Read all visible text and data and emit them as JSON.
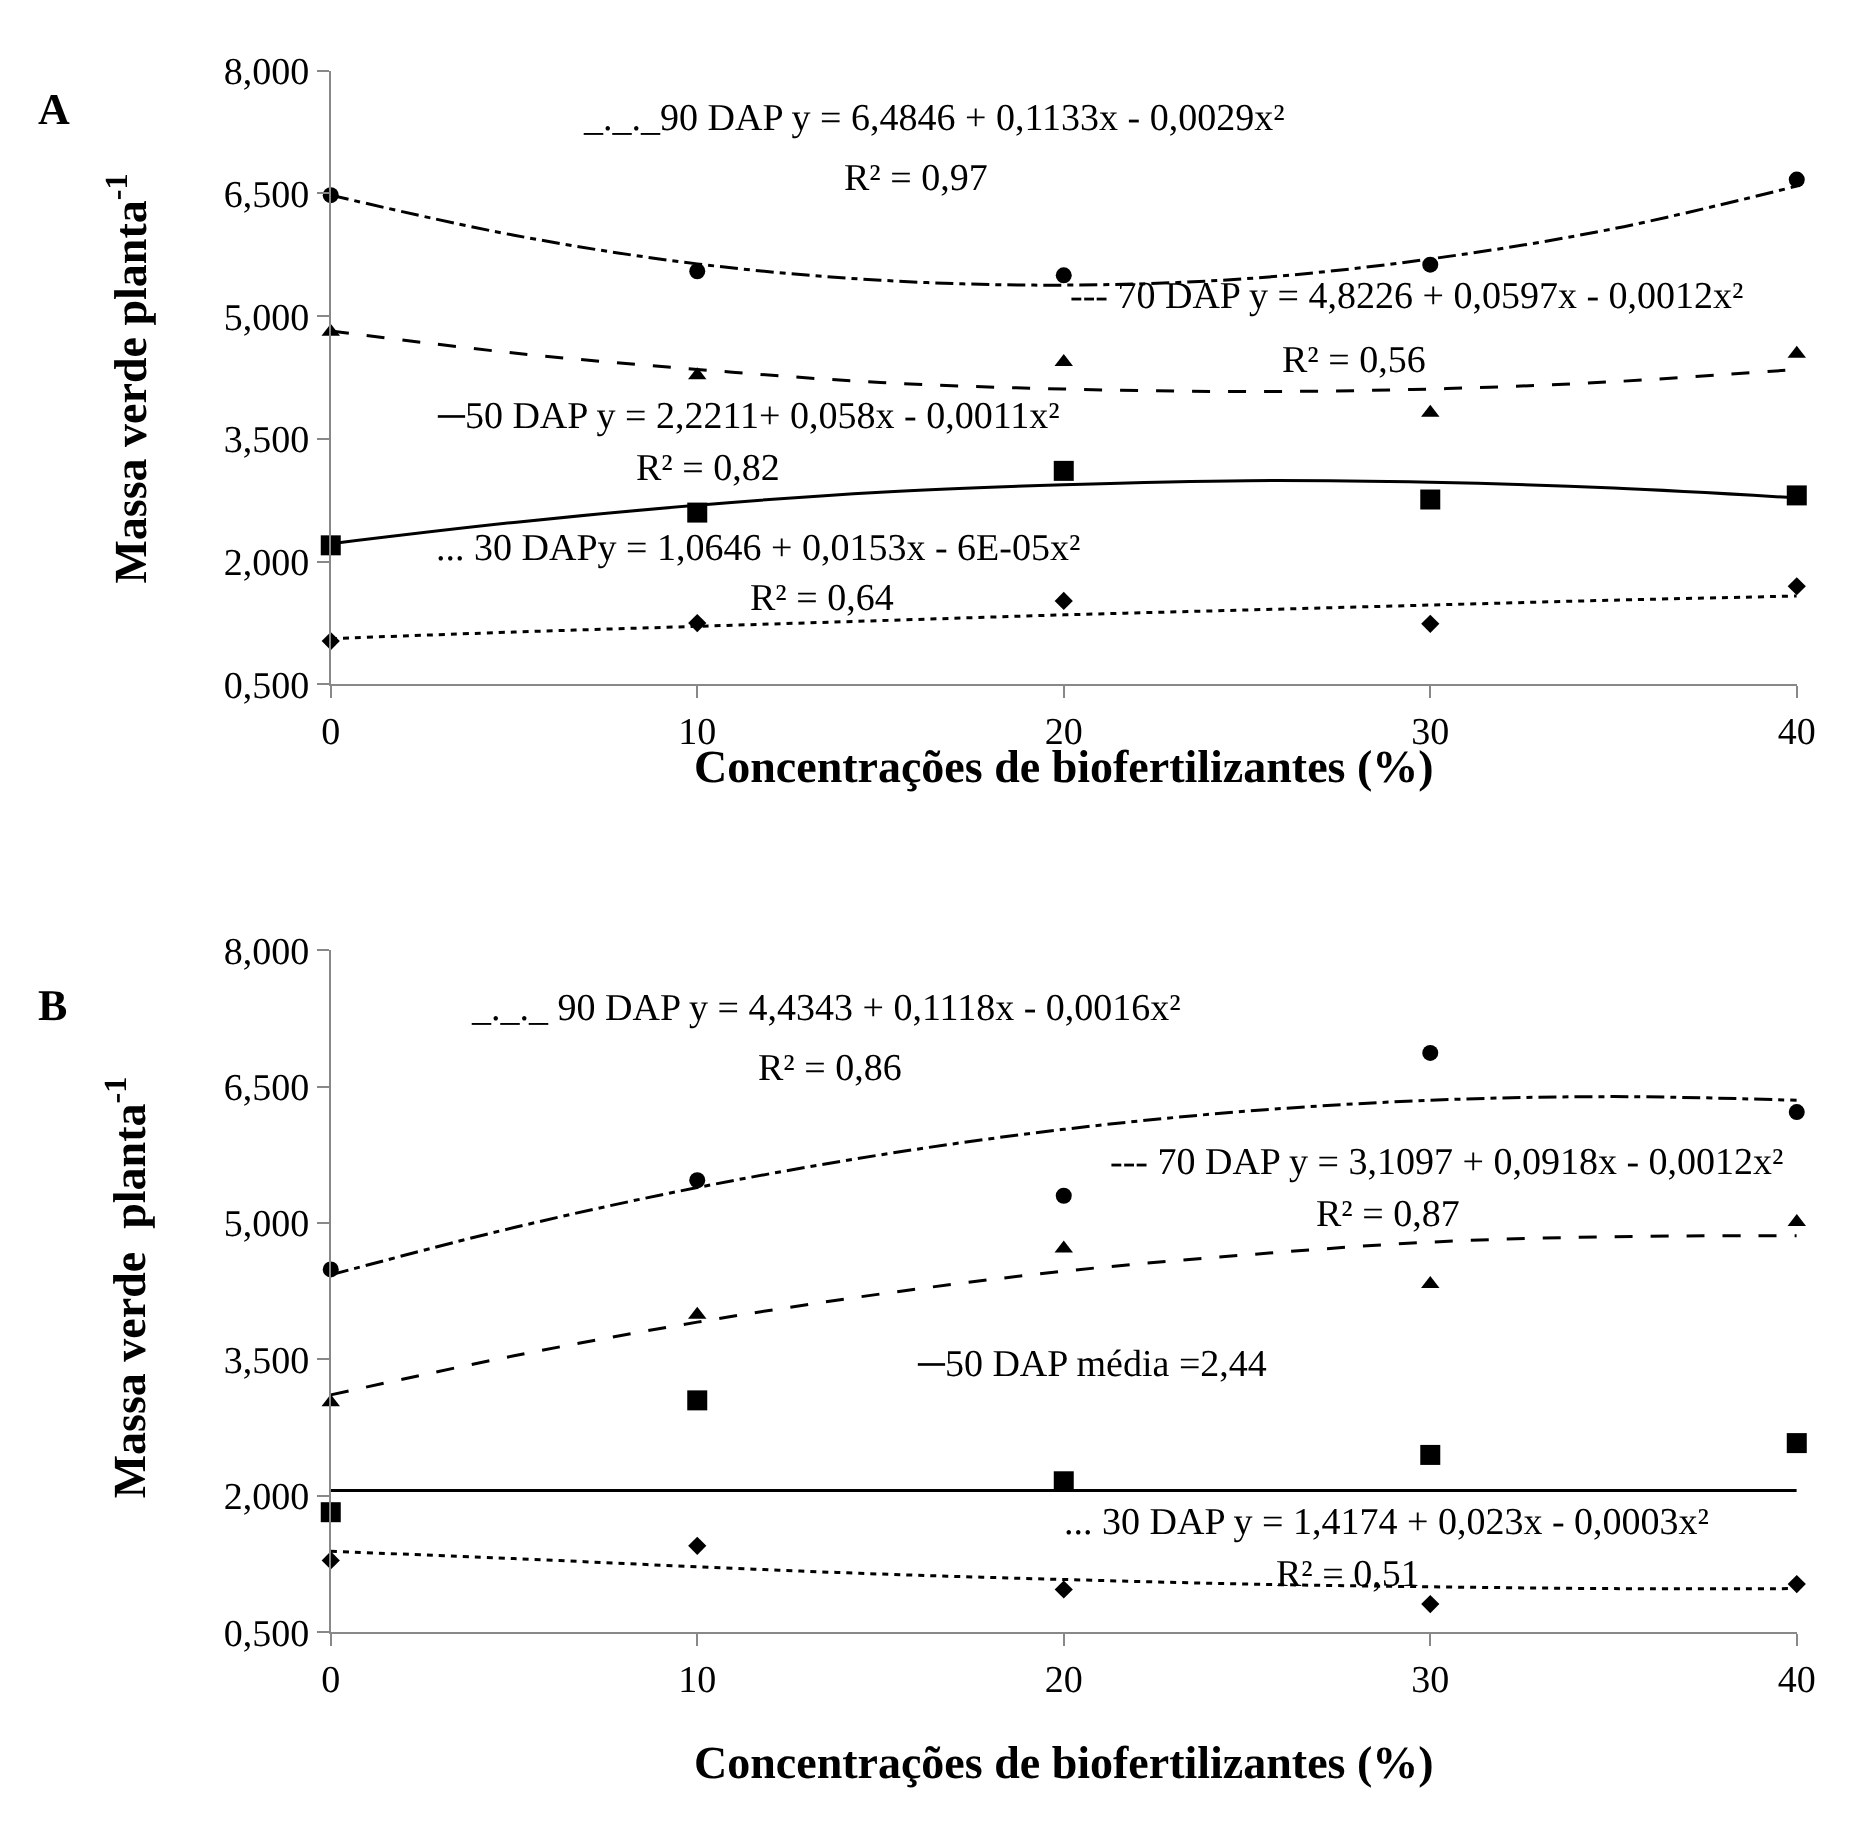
{
  "chart_data": [
    {
      "type": "scatter",
      "title": "A",
      "xlabel": "Concentrações de biofertilizantes (%)",
      "ylabel": "Massa verde planta$^{-1}$",
      "x": [
        0,
        10,
        20,
        30,
        40
      ],
      "xlim": [
        0,
        40
      ],
      "xticks": [
        0,
        10,
        20,
        30,
        40
      ],
      "ylim": [
        0.5,
        8
      ],
      "yticks": [
        {
          "value": 0.5,
          "label": "0,500"
        },
        {
          "value": 2,
          "label": "2,000"
        },
        {
          "value": 3.5,
          "label": "3,500"
        },
        {
          "value": 5,
          "label": "5,000"
        },
        {
          "value": 6.5,
          "label": "6,500"
        },
        {
          "value": 8,
          "label": "8,000"
        }
      ],
      "series": [
        {
          "marker": "circle",
          "color": "#000000",
          "values": [
            6.48,
            5.55,
            5.5,
            5.63,
            6.67
          ]
        },
        {
          "marker": "triangle",
          "color": "#000000",
          "values": [
            4.81,
            4.28,
            4.44,
            3.82,
            4.54
          ]
        },
        {
          "marker": "square",
          "color": "#000000",
          "values": [
            2.2,
            2.6,
            3.11,
            2.76,
            2.81
          ]
        },
        {
          "marker": "diamond",
          "color": "#000000",
          "values": [
            1.03,
            1.25,
            1.52,
            1.24,
            1.7
          ]
        },
        {
          "type": "line",
          "line_style": "dashdot",
          "color": "#000000",
          "x": [
            0,
            5,
            10,
            15,
            20,
            25,
            30,
            35,
            40
          ],
          "values": [
            6.48,
            5.99,
            5.64,
            5.44,
            5.38,
            5.46,
            5.7,
            6.07,
            6.59
          ]
        },
        {
          "type": "line",
          "line_style": "dashed",
          "color": "#000000",
          "x": [
            0,
            5,
            10,
            15,
            20,
            25,
            30,
            35,
            40
          ],
          "values": [
            4.82,
            4.55,
            4.35,
            4.19,
            4.11,
            4.08,
            4.11,
            4.2,
            4.35
          ]
        },
        {
          "type": "line",
          "line_style": "solid",
          "color": "#000000",
          "x": [
            0,
            5,
            10,
            15,
            20,
            25,
            30,
            35,
            40
          ],
          "values": [
            2.22,
            2.48,
            2.69,
            2.85,
            2.94,
            2.99,
            2.97,
            2.9,
            2.78
          ]
        },
        {
          "type": "line",
          "line_style": "dotted",
          "color": "#000000",
          "x": [
            0,
            5,
            10,
            15,
            20,
            25,
            30,
            35,
            40
          ],
          "values": [
            1.06,
            1.14,
            1.21,
            1.28,
            1.35,
            1.41,
            1.47,
            1.53,
            1.58
          ]
        }
      ],
      "annotations": [
        "_._._90 DAP y = 6,4846 + 0,1133x - 0,0029x²",
        "R² = 0,97",
        "--- 70 DAP y = 4,8226 + 0,0597x - 0,0012x²",
        "R² = 0,56",
        "─50 DAP y = 2,2211+ 0,058x - 0,0011x²",
        "R² = 0,82",
        "... 30 DAPy = 1,0646 + 0,0153x - 6E-05x²",
        "R² = 0,64"
      ]
    },
    {
      "type": "scatter",
      "title": "B",
      "xlabel": "Concentrações de biofertilizantes (%)",
      "ylabel": "Massa verde  planta$^{-1}$",
      "x": [
        0,
        10,
        20,
        30,
        40
      ],
      "xlim": [
        0,
        40
      ],
      "xticks": [
        0,
        10,
        20,
        30,
        40
      ],
      "ylim": [
        0.5,
        8
      ],
      "yticks": [
        {
          "value": 0.5,
          "label": "0,500"
        },
        {
          "value": 2,
          "label": "2,000"
        },
        {
          "value": 3.5,
          "label": "3,500"
        },
        {
          "value": 5,
          "label": "5,000"
        },
        {
          "value": 6.5,
          "label": "6,500"
        },
        {
          "value": 8,
          "label": "8,000"
        }
      ],
      "series": [
        {
          "marker": "circle",
          "color": "#000000",
          "values": [
            4.49,
            5.47,
            5.3,
            6.87,
            6.22
          ]
        },
        {
          "marker": "triangle",
          "color": "#000000",
          "values": [
            3.03,
            3.99,
            4.72,
            4.33,
            5.01
          ]
        },
        {
          "marker": "square",
          "color": "#000000",
          "values": [
            1.82,
            3.05,
            2.16,
            2.45,
            2.58
          ]
        },
        {
          "marker": "diamond",
          "color": "#000000",
          "values": [
            1.29,
            1.45,
            0.97,
            0.81,
            1.03
          ]
        },
        {
          "type": "line",
          "line_style": "dashdot",
          "color": "#000000",
          "x": [
            0,
            5,
            10,
            15,
            20,
            25,
            30,
            35,
            40
          ],
          "values": [
            4.43,
            4.95,
            5.39,
            5.75,
            6.03,
            6.23,
            6.35,
            6.39,
            6.35
          ]
        },
        {
          "type": "line",
          "line_style": "dashed",
          "color": "#000000",
          "x": [
            0,
            5,
            10,
            15,
            20,
            25,
            30,
            35,
            40
          ],
          "values": [
            3.11,
            3.54,
            3.91,
            4.22,
            4.47,
            4.65,
            4.79,
            4.85,
            4.86
          ]
        },
        {
          "type": "line",
          "line_style": "solid",
          "color": "#000000",
          "x": [
            0,
            40
          ],
          "values": [
            2.06,
            2.06
          ]
        },
        {
          "type": "line",
          "line_style": "dotted",
          "color": "#000000",
          "x": [
            0,
            5,
            10,
            15,
            20,
            25,
            30,
            35,
            40
          ],
          "values": [
            1.39,
            1.31,
            1.22,
            1.14,
            1.08,
            1.03,
            1.0,
            0.98,
            0.98
          ]
        }
      ],
      "annotations": [
        "_._._ 90 DAP y = 4,4343 + 0,1118x - 0,0016x²",
        "R² = 0,86",
        "--- 70 DAP y = 3,1097 + 0,0918x - 0,0012x²",
        "R² = 0,87",
        "─50 DAP média =2,44",
        "... 30 DAP y = 1,4174 + 0,023x - 0,0003x²",
        "R² = 0,51"
      ]
    }
  ]
}
